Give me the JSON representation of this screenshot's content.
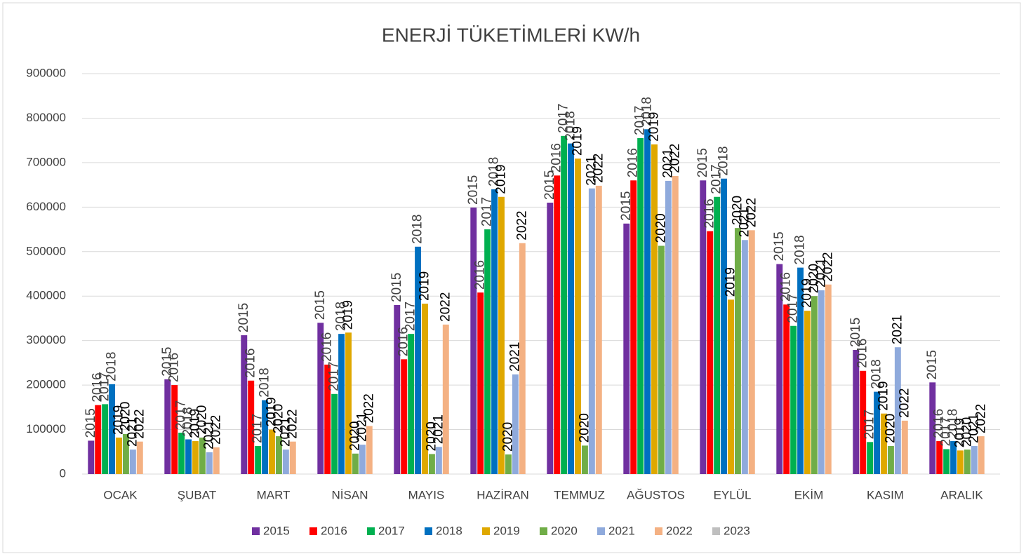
{
  "chart_data": {
    "type": "bar",
    "title": "ENERJİ TÜKETİMLERİ KW/h",
    "categories": [
      "OCAK",
      "ŞUBAT",
      "MART",
      "NİSAN",
      "MAYIS",
      "HAZİRAN",
      "TEMMUZ",
      "AĞUSTOS",
      "EYLÜL",
      "EKİM",
      "KASIM",
      "ARALIK"
    ],
    "series": [
      {
        "name": "2015",
        "color": "#7030a0",
        "values": [
          75000,
          213000,
          312000,
          340000,
          380000,
          599000,
          610000,
          563000,
          660000,
          472000,
          279000,
          206000
        ]
      },
      {
        "name": "2016",
        "color": "#ff0000",
        "values": [
          155000,
          200000,
          210000,
          246000,
          258000,
          408000,
          671000,
          660000,
          546000,
          381000,
          232000,
          74000
        ]
      },
      {
        "name": "2017",
        "color": "#00b050",
        "values": [
          157000,
          93000,
          63000,
          180000,
          315000,
          550000,
          760000,
          755000,
          623000,
          333000,
          72000,
          56000
        ]
      },
      {
        "name": "2018",
        "color": "#0070c0",
        "values": [
          202000,
          78000,
          166000,
          315000,
          511000,
          640000,
          743000,
          775000,
          664000,
          464000,
          185000,
          74000
        ]
      },
      {
        "name": "2019",
        "color": "#dfa800",
        "values": [
          82000,
          74000,
          100000,
          318000,
          383000,
          623000,
          709000,
          741000,
          392000,
          367000,
          136000,
          53000
        ]
      },
      {
        "name": "2020",
        "color": "#70ad47",
        "values": [
          90000,
          82000,
          85000,
          46000,
          45000,
          44000,
          64000,
          513000,
          553000,
          400000,
          63000,
          55000
        ]
      },
      {
        "name": "2021",
        "color": "#8faadc",
        "values": [
          55000,
          49000,
          55000,
          66000,
          61000,
          224000,
          642000,
          659000,
          526000,
          413000,
          285000,
          63000
        ]
      },
      {
        "name": "2022",
        "color": "#f4b183",
        "values": [
          73000,
          60000,
          73000,
          108000,
          336000,
          519000,
          648000,
          670000,
          548000,
          426000,
          120000,
          85000
        ]
      },
      {
        "name": "2023",
        "color": "#bfbfbf",
        "values": [
          null,
          null,
          null,
          null,
          null,
          null,
          null,
          null,
          null,
          null,
          null,
          null
        ]
      }
    ],
    "ylim": [
      0,
      900000
    ],
    "yticks": [
      0,
      100000,
      200000,
      300000,
      400000,
      500000,
      600000,
      700000,
      800000,
      900000
    ],
    "grid": true,
    "legend": "bottom",
    "data_labels": "series_name"
  }
}
